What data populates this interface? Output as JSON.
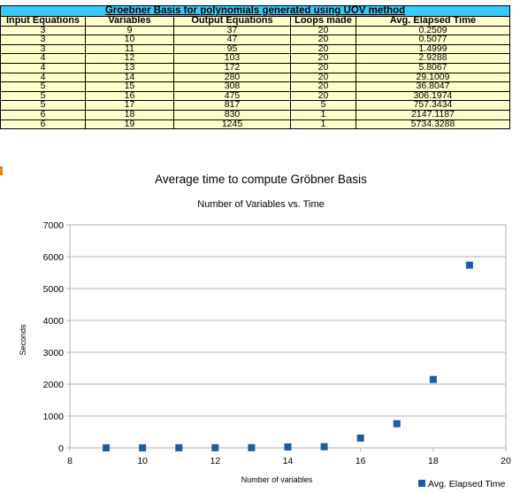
{
  "table": {
    "title": "Groebner Basis for polynomials generated using UOV method",
    "headers": [
      "Input Equations",
      "Variables",
      "Output Equations",
      "Loops made",
      "Avg. Elapsed Time"
    ],
    "rows": [
      [
        "3",
        "9",
        "37",
        "20",
        "0.2509"
      ],
      [
        "3",
        "10",
        "47",
        "20",
        "0.5077"
      ],
      [
        "3",
        "11",
        "95",
        "20",
        "1.4999"
      ],
      [
        "4",
        "12",
        "103",
        "20",
        "2.9288"
      ],
      [
        "4",
        "13",
        "172",
        "20",
        "5.8067"
      ],
      [
        "4",
        "14",
        "280",
        "20",
        "29.1009"
      ],
      [
        "5",
        "15",
        "308",
        "20",
        "36.8047"
      ],
      [
        "5",
        "16",
        "475",
        "20",
        "306.1974"
      ],
      [
        "5",
        "17",
        "817",
        "5",
        "757.3434"
      ],
      [
        "6",
        "18",
        "830",
        "1",
        "2147.1187"
      ],
      [
        "6",
        "19",
        "1245",
        "1",
        "5734.3288"
      ]
    ],
    "colors": {
      "title_bg": "#33ccff",
      "cell_bg": "#ffffcc"
    }
  },
  "chart_data": {
    "type": "scatter",
    "title": "Average time to compute Gröbner Basis",
    "subtitle": "Number of Variables vs. Time",
    "xlabel": "Number of variables",
    "ylabel": "Seconds",
    "xlim": [
      8,
      20
    ],
    "ylim": [
      0,
      7000
    ],
    "xticks": [
      8,
      10,
      12,
      14,
      16,
      18,
      20
    ],
    "yticks": [
      0,
      1000,
      2000,
      3000,
      4000,
      5000,
      6000,
      7000
    ],
    "grid": true,
    "legend_position": "bottom-right",
    "series": [
      {
        "name": "Avg. Elapsed Time",
        "color": "#1f5c99",
        "x": [
          9,
          10,
          11,
          12,
          13,
          14,
          15,
          16,
          17,
          18,
          19
        ],
        "y": [
          0.2509,
          0.5077,
          1.4999,
          2.9288,
          5.8067,
          29.1009,
          36.8047,
          306.1974,
          757.3434,
          2147.1187,
          5734.3288
        ]
      }
    ]
  }
}
